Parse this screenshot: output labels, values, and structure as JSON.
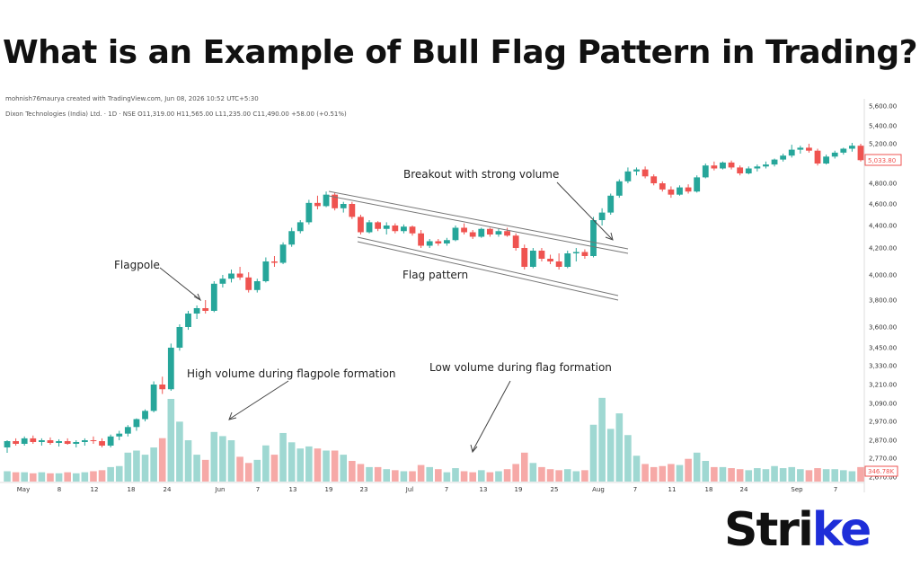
{
  "headline": "What is an Example of Bull Flag Pattern in Trading?",
  "creator": "mohnish76maurya created with TradingView.com, Jun 08, 2026 10:52 UTC+5:30",
  "legend": "Dixon Technologies (India) Ltd. · 1D · NSE O11,319.00 H11,565.00 L11,235.00 C11,490.00 +58.00 (+0.51%)",
  "brand": {
    "prefix": "Stri",
    "mark": "ke"
  },
  "colors": {
    "up": "#26a69a",
    "down": "#ef5350",
    "vol_up": "#9fd8d2",
    "vol_down": "#f6a9a7"
  },
  "chart_data": {
    "type": "candlestick",
    "y_ticks": [
      "5,600.00",
      "5,400.00",
      "5,200.00",
      "4,800.00",
      "4,600.00",
      "4,400.00",
      "4,200.00",
      "4,000.00",
      "3,800.00",
      "3,600.00",
      "3,450.00",
      "3,330.00",
      "3,210.00",
      "3,090.00",
      "2,970.00",
      "2,870.00",
      "2,770.00",
      "2,670.00"
    ],
    "x_ticks": [
      "May",
      "8",
      "12",
      "18",
      "24",
      "Jun",
      "7",
      "13",
      "19",
      "23",
      "Jul",
      "7",
      "13",
      "19",
      "25",
      "Aug",
      "7",
      "11",
      "18",
      "24",
      "Sep",
      "7"
    ],
    "last_price": "5,033.80",
    "last_volume": "346.78K",
    "candles": [
      [
        2830,
        2870,
        2800,
        2865
      ],
      [
        2865,
        2880,
        2840,
        2850
      ],
      [
        2850,
        2890,
        2840,
        2880
      ],
      [
        2880,
        2895,
        2850,
        2860
      ],
      [
        2860,
        2880,
        2840,
        2870
      ],
      [
        2870,
        2885,
        2845,
        2855
      ],
      [
        2855,
        2875,
        2835,
        2865
      ],
      [
        2865,
        2880,
        2845,
        2850
      ],
      [
        2850,
        2870,
        2830,
        2860
      ],
      [
        2860,
        2880,
        2840,
        2870
      ],
      [
        2870,
        2890,
        2850,
        2865
      ],
      [
        2865,
        2880,
        2830,
        2840
      ],
      [
        2840,
        2900,
        2830,
        2890
      ],
      [
        2890,
        2920,
        2870,
        2905
      ],
      [
        2905,
        2950,
        2890,
        2940
      ],
      [
        2940,
        2990,
        2920,
        2985
      ],
      [
        2985,
        3050,
        2970,
        3040
      ],
      [
        3040,
        3230,
        3030,
        3210
      ],
      [
        3210,
        3260,
        3150,
        3180
      ],
      [
        3180,
        3480,
        3170,
        3450
      ],
      [
        3450,
        3620,
        3430,
        3600
      ],
      [
        3600,
        3720,
        3580,
        3700
      ],
      [
        3700,
        3760,
        3660,
        3740
      ],
      [
        3740,
        3800,
        3700,
        3720
      ],
      [
        3720,
        3950,
        3710,
        3930
      ],
      [
        3930,
        4000,
        3900,
        3970
      ],
      [
        3970,
        4040,
        3940,
        4010
      ],
      [
        4010,
        4060,
        3960,
        3980
      ],
      [
        3980,
        4020,
        3860,
        3880
      ],
      [
        3880,
        3970,
        3860,
        3950
      ],
      [
        3950,
        4130,
        3940,
        4100
      ],
      [
        4100,
        4140,
        4060,
        4090
      ],
      [
        4090,
        4250,
        4080,
        4230
      ],
      [
        4230,
        4380,
        4210,
        4350
      ],
      [
        4350,
        4450,
        4330,
        4430
      ],
      [
        4430,
        4640,
        4410,
        4610
      ],
      [
        4610,
        4680,
        4550,
        4580
      ],
      [
        4580,
        4720,
        4570,
        4690
      ],
      [
        4690,
        4710,
        4540,
        4560
      ],
      [
        4560,
        4620,
        4520,
        4600
      ],
      [
        4600,
        4620,
        4460,
        4480
      ],
      [
        4480,
        4500,
        4320,
        4340
      ],
      [
        4340,
        4450,
        4330,
        4430
      ],
      [
        4430,
        4440,
        4350,
        4370
      ],
      [
        4370,
        4430,
        4320,
        4400
      ],
      [
        4400,
        4420,
        4330,
        4350
      ],
      [
        4350,
        4410,
        4330,
        4390
      ],
      [
        4390,
        4400,
        4310,
        4330
      ],
      [
        4330,
        4360,
        4200,
        4220
      ],
      [
        4220,
        4280,
        4200,
        4260
      ],
      [
        4260,
        4280,
        4220,
        4240
      ],
      [
        4240,
        4290,
        4220,
        4270
      ],
      [
        4270,
        4400,
        4260,
        4380
      ],
      [
        4380,
        4420,
        4320,
        4340
      ],
      [
        4340,
        4360,
        4280,
        4300
      ],
      [
        4300,
        4380,
        4290,
        4370
      ],
      [
        4370,
        4380,
        4300,
        4320
      ],
      [
        4320,
        4370,
        4300,
        4350
      ],
      [
        4350,
        4380,
        4300,
        4310
      ],
      [
        4310,
        4330,
        4180,
        4200
      ],
      [
        4200,
        4230,
        4040,
        4060
      ],
      [
        4060,
        4200,
        4050,
        4180
      ],
      [
        4180,
        4200,
        4100,
        4120
      ],
      [
        4120,
        4150,
        4080,
        4100
      ],
      [
        4100,
        4160,
        4040,
        4060
      ],
      [
        4060,
        4180,
        4050,
        4160
      ],
      [
        4160,
        4200,
        4100,
        4170
      ],
      [
        4170,
        4190,
        4120,
        4140
      ],
      [
        4140,
        4480,
        4130,
        4450
      ],
      [
        4450,
        4560,
        4400,
        4520
      ],
      [
        4520,
        4700,
        4500,
        4680
      ],
      [
        4680,
        4840,
        4660,
        4820
      ],
      [
        4820,
        4960,
        4800,
        4920
      ],
      [
        4920,
        4960,
        4880,
        4940
      ],
      [
        4940,
        4970,
        4850,
        4870
      ],
      [
        4870,
        4890,
        4780,
        4800
      ],
      [
        4800,
        4820,
        4720,
        4740
      ],
      [
        4740,
        4770,
        4660,
        4690
      ],
      [
        4690,
        4780,
        4680,
        4760
      ],
      [
        4760,
        4790,
        4700,
        4720
      ],
      [
        4720,
        4880,
        4710,
        4860
      ],
      [
        4860,
        5000,
        4850,
        4980
      ],
      [
        4980,
        5020,
        4930,
        4950
      ],
      [
        4950,
        5020,
        4940,
        5010
      ],
      [
        5010,
        5030,
        4940,
        4960
      ],
      [
        4960,
        4980,
        4880,
        4900
      ],
      [
        4900,
        4970,
        4890,
        4950
      ],
      [
        4950,
        4990,
        4920,
        4970
      ],
      [
        4970,
        5020,
        4950,
        4990
      ],
      [
        4990,
        5050,
        4970,
        5040
      ],
      [
        5040,
        5100,
        5020,
        5080
      ],
      [
        5080,
        5190,
        5060,
        5140
      ],
      [
        5140,
        5180,
        5100,
        5160
      ],
      [
        5160,
        5200,
        5110,
        5130
      ],
      [
        5130,
        5150,
        4980,
        5000
      ],
      [
        5000,
        5090,
        4990,
        5070
      ],
      [
        5070,
        5130,
        5050,
        5110
      ],
      [
        5110,
        5160,
        5090,
        5150
      ],
      [
        5150,
        5210,
        5120,
        5180
      ],
      [
        5180,
        5200,
        5020,
        5033.8
      ]
    ],
    "volumes": [
      0.1,
      0.09,
      0.09,
      0.08,
      0.09,
      0.08,
      0.08,
      0.09,
      0.08,
      0.09,
      0.1,
      0.11,
      0.14,
      0.15,
      0.28,
      0.3,
      0.26,
      0.33,
      0.42,
      0.8,
      0.58,
      0.4,
      0.26,
      0.21,
      0.48,
      0.44,
      0.4,
      0.24,
      0.18,
      0.21,
      0.35,
      0.26,
      0.47,
      0.38,
      0.32,
      0.34,
      0.32,
      0.3,
      0.3,
      0.26,
      0.2,
      0.17,
      0.14,
      0.14,
      0.12,
      0.11,
      0.1,
      0.1,
      0.16,
      0.14,
      0.12,
      0.09,
      0.13,
      0.1,
      0.09,
      0.11,
      0.09,
      0.1,
      0.12,
      0.17,
      0.28,
      0.18,
      0.14,
      0.12,
      0.11,
      0.12,
      0.1,
      0.11,
      0.55,
      0.81,
      0.51,
      0.66,
      0.45,
      0.25,
      0.17,
      0.14,
      0.15,
      0.17,
      0.16,
      0.22,
      0.28,
      0.2,
      0.14,
      0.14,
      0.13,
      0.12,
      0.11,
      0.13,
      0.12,
      0.15,
      0.13,
      0.14,
      0.12,
      0.11,
      0.13,
      0.12,
      0.12,
      0.11,
      0.1,
      0.14
    ],
    "annotations": [
      "Flagpole",
      "Breakout with strong volume",
      "Flag pattern",
      "High volume during flagpole formation",
      "Low volume during flag formation"
    ]
  }
}
